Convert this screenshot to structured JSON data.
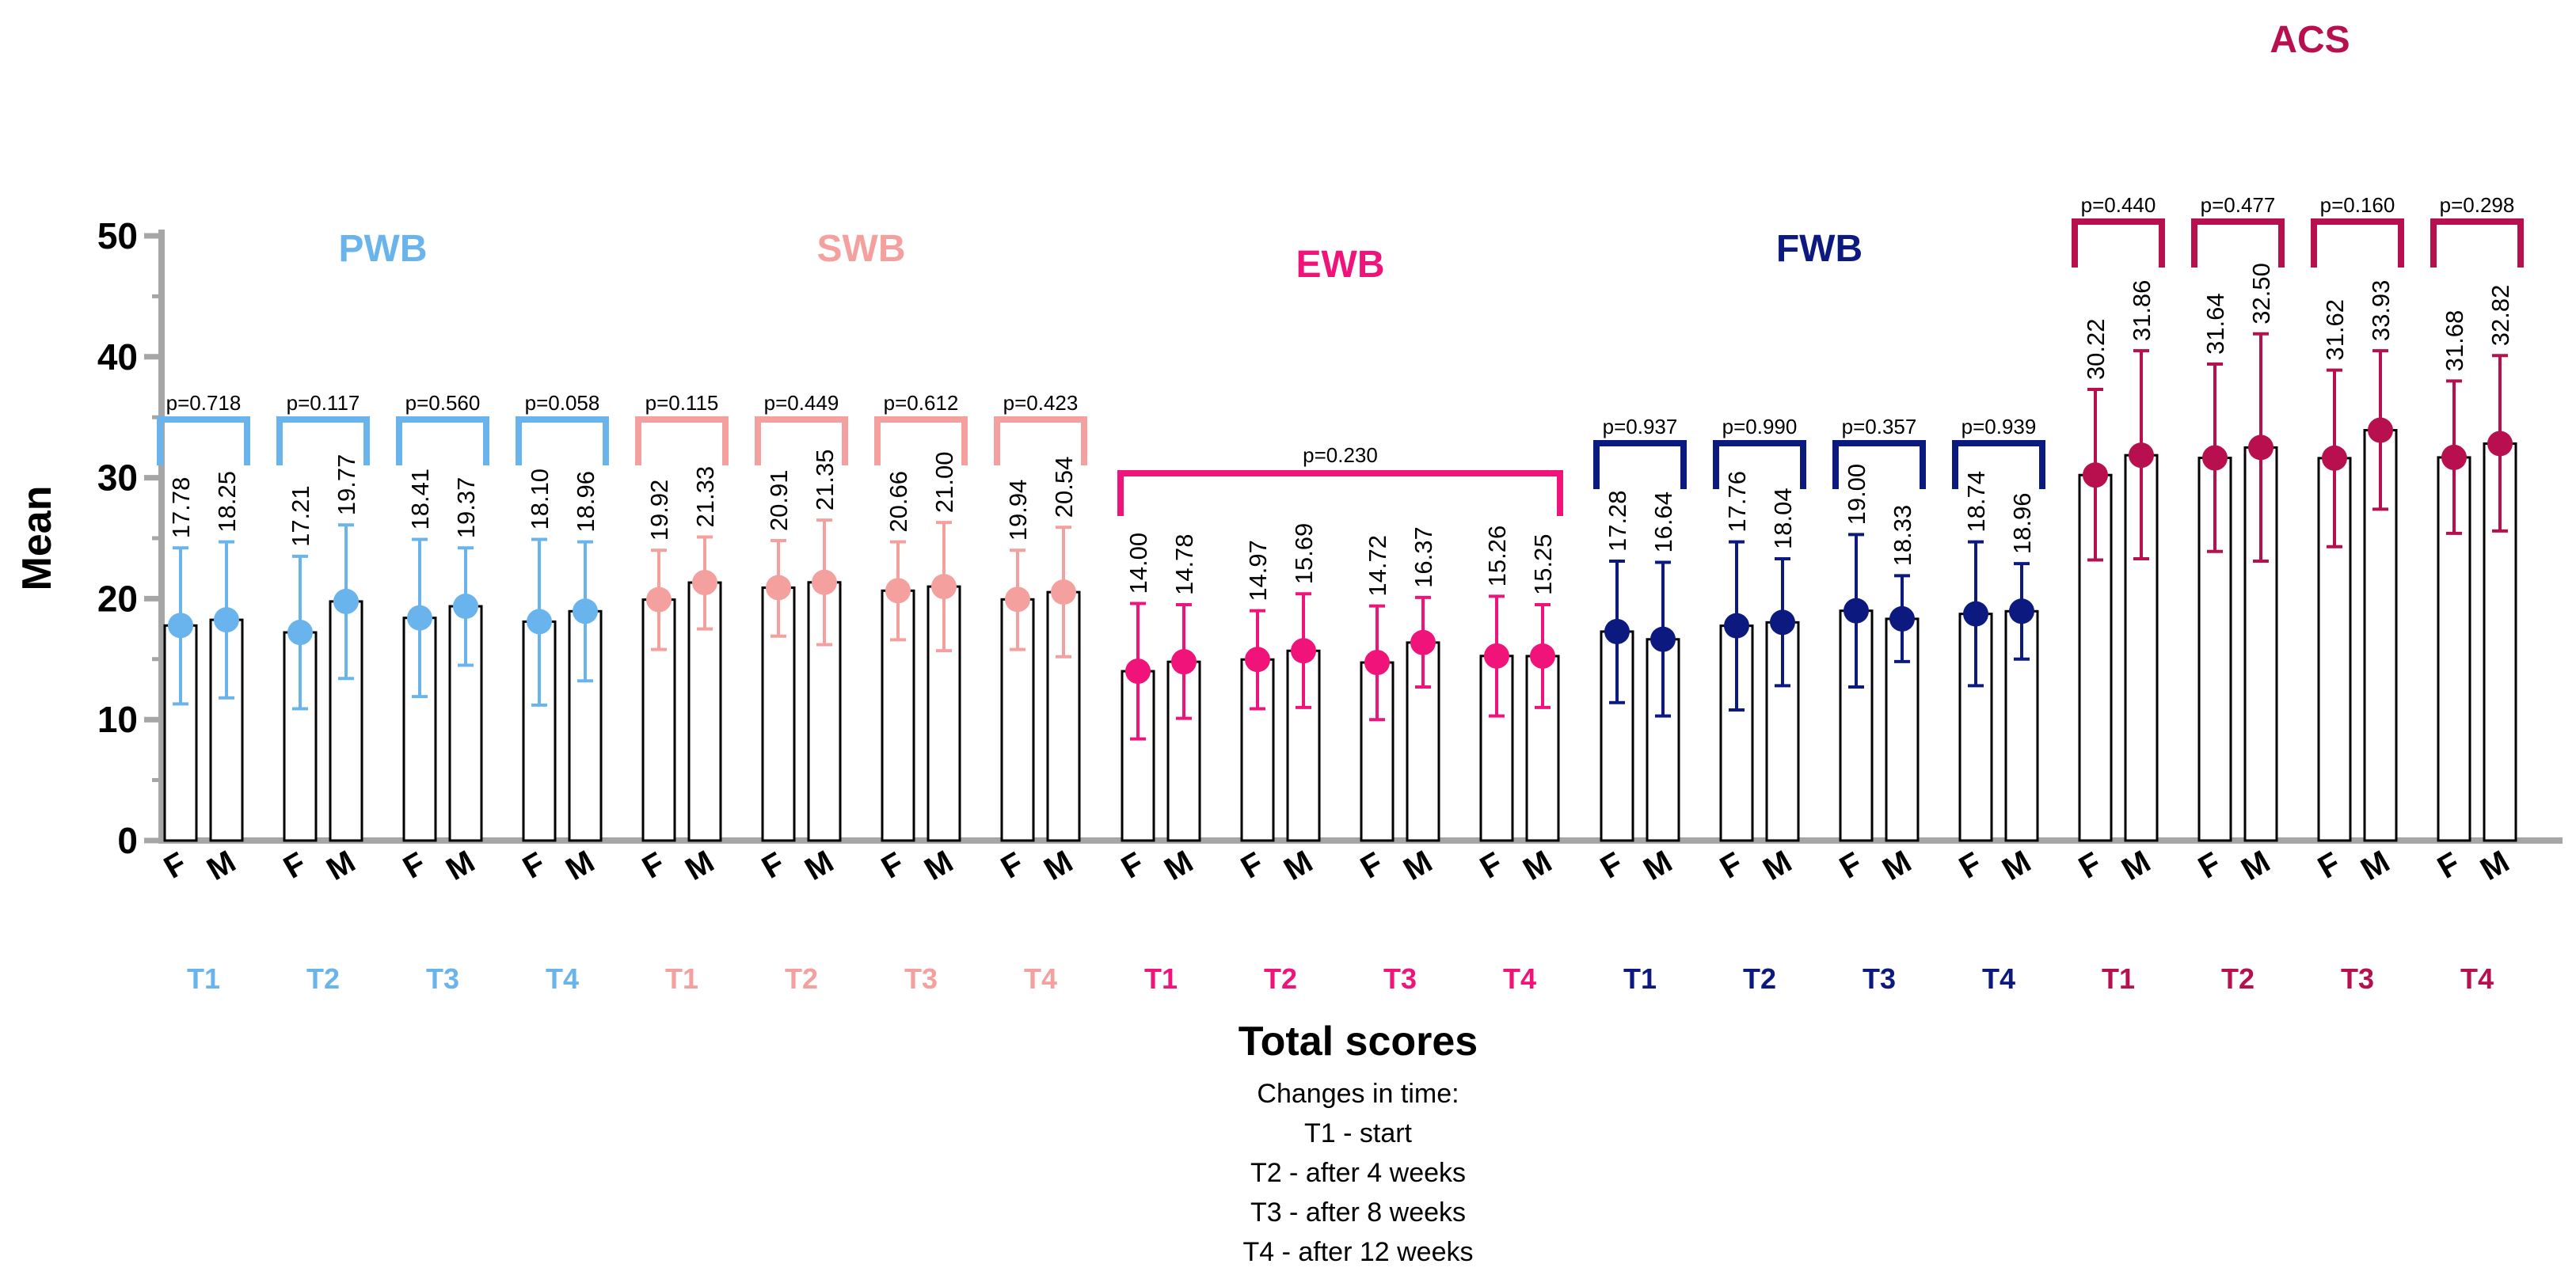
{
  "colors": {
    "PWB": "#6ab4ee",
    "SWB": "#f4a09e",
    "EWB": "#f0147a",
    "FWB": "#0c1a80",
    "ACS": "#b8104e",
    "axis": "#a6a6a6",
    "bar_outline": "#000000"
  },
  "chart_data": {
    "type": "bar",
    "ylabel": "Mean",
    "ylim": [
      0,
      50
    ],
    "yticks": [
      0,
      10,
      20,
      30,
      40,
      50
    ],
    "xtitle": "Total scores",
    "notes": [
      "Changes in time:",
      "T1 - start",
      "T2 - after 4 weeks",
      "T3 - after 8 weeks",
      "T4 - after 12 weeks"
    ],
    "error_bars": "mean ± SD (approx.)",
    "groups": [
      {
        "name": "PWB",
        "points": [
          {
            "time": "T1",
            "F": {
              "mean": 17.78,
              "lo": 11.3,
              "hi": 24.2,
              "label": "17.78"
            },
            "M": {
              "mean": 18.25,
              "lo": 11.8,
              "hi": 24.7,
              "label": "18.25"
            },
            "p": "p=0.718"
          },
          {
            "time": "T2",
            "F": {
              "mean": 17.21,
              "lo": 10.9,
              "hi": 23.5,
              "label": "17.21"
            },
            "M": {
              "mean": 19.77,
              "lo": 13.4,
              "hi": 26.1,
              "label": "19.77"
            },
            "p": "p=0.117"
          },
          {
            "time": "T3",
            "F": {
              "mean": 18.41,
              "lo": 11.9,
              "hi": 24.9,
              "label": "18.41"
            },
            "M": {
              "mean": 19.37,
              "lo": 14.5,
              "hi": 24.2,
              "label": "19.37"
            },
            "p": "p=0.560"
          },
          {
            "time": "T4",
            "F": {
              "mean": 18.1,
              "lo": 11.2,
              "hi": 24.9,
              "label": "18.10"
            },
            "M": {
              "mean": 18.96,
              "lo": 13.2,
              "hi": 24.7,
              "label": "18.96"
            },
            "p": "p=0.058"
          }
        ]
      },
      {
        "name": "SWB",
        "points": [
          {
            "time": "T1",
            "F": {
              "mean": 19.92,
              "lo": 15.8,
              "hi": 24.0,
              "label": "19.92"
            },
            "M": {
              "mean": 21.33,
              "lo": 17.5,
              "hi": 25.1,
              "label": "21.33"
            },
            "p": "p=0.115"
          },
          {
            "time": "T2",
            "F": {
              "mean": 20.91,
              "lo": 16.9,
              "hi": 24.8,
              "label": "20.91"
            },
            "M": {
              "mean": 21.35,
              "lo": 16.2,
              "hi": 26.5,
              "label": "21.35"
            },
            "p": "p=0.449"
          },
          {
            "time": "T3",
            "F": {
              "mean": 20.66,
              "lo": 16.6,
              "hi": 24.7,
              "label": "20.66"
            },
            "M": {
              "mean": 21.0,
              "lo": 15.7,
              "hi": 26.3,
              "label": "21.00"
            },
            "p": "p=0.612"
          },
          {
            "time": "T4",
            "F": {
              "mean": 19.94,
              "lo": 15.8,
              "hi": 24.0,
              "label": "19.94"
            },
            "M": {
              "mean": 20.54,
              "lo": 15.2,
              "hi": 25.9,
              "label": "20.54"
            },
            "p": "p=0.423"
          }
        ]
      },
      {
        "name": "EWB",
        "p": "p=0.230",
        "points": [
          {
            "time": "T1",
            "F": {
              "mean": 14.0,
              "lo": 8.4,
              "hi": 19.6,
              "label": "14.00"
            },
            "M": {
              "mean": 14.78,
              "lo": 10.1,
              "hi": 19.5,
              "label": "14.78"
            }
          },
          {
            "time": "T2",
            "F": {
              "mean": 14.97,
              "lo": 10.9,
              "hi": 19.0,
              "label": "14.97"
            },
            "M": {
              "mean": 15.69,
              "lo": 11.0,
              "hi": 20.4,
              "label": "15.69"
            }
          },
          {
            "time": "T3",
            "F": {
              "mean": 14.72,
              "lo": 10.0,
              "hi": 19.4,
              "label": "14.72"
            },
            "M": {
              "mean": 16.37,
              "lo": 12.7,
              "hi": 20.1,
              "label": "16.37"
            }
          },
          {
            "time": "T4",
            "F": {
              "mean": 15.26,
              "lo": 10.3,
              "hi": 20.2,
              "label": "15.26"
            },
            "M": {
              "mean": 15.25,
              "lo": 11.0,
              "hi": 19.5,
              "label": "15.25"
            }
          }
        ]
      },
      {
        "name": "FWB",
        "points": [
          {
            "time": "T1",
            "F": {
              "mean": 17.28,
              "lo": 11.4,
              "hi": 23.1,
              "label": "17.28"
            },
            "M": {
              "mean": 16.64,
              "lo": 10.3,
              "hi": 23.0,
              "label": "16.64"
            },
            "p": "p=0.937"
          },
          {
            "time": "T2",
            "F": {
              "mean": 17.76,
              "lo": 10.8,
              "hi": 24.7,
              "label": "17.76"
            },
            "M": {
              "mean": 18.04,
              "lo": 12.8,
              "hi": 23.3,
              "label": "18.04"
            },
            "p": "p=0.990"
          },
          {
            "time": "T3",
            "F": {
              "mean": 19.0,
              "lo": 12.7,
              "hi": 25.3,
              "label": "19.00"
            },
            "M": {
              "mean": 18.33,
              "lo": 14.8,
              "hi": 21.9,
              "label": "18.33"
            },
            "p": "p=0.357"
          },
          {
            "time": "T4",
            "F": {
              "mean": 18.74,
              "lo": 12.8,
              "hi": 24.7,
              "label": "18.74"
            },
            "M": {
              "mean": 18.96,
              "lo": 15.0,
              "hi": 22.9,
              "label": "18.96"
            },
            "p": "p=0.939"
          }
        ]
      },
      {
        "name": "ACS",
        "points": [
          {
            "time": "T1",
            "F": {
              "mean": 30.22,
              "lo": 23.2,
              "hi": 37.3,
              "label": "30.22"
            },
            "M": {
              "mean": 31.86,
              "lo": 23.3,
              "hi": 40.5,
              "label": "31.86"
            },
            "p": "p=0.440"
          },
          {
            "time": "T2",
            "F": {
              "mean": 31.64,
              "lo": 23.9,
              "hi": 39.4,
              "label": "31.64"
            },
            "M": {
              "mean": 32.5,
              "lo": 23.1,
              "hi": 41.9,
              "label": "32.50"
            },
            "p": "p=0.477"
          },
          {
            "time": "T3",
            "F": {
              "mean": 31.62,
              "lo": 24.3,
              "hi": 38.9,
              "label": "31.62"
            },
            "M": {
              "mean": 33.93,
              "lo": 27.4,
              "hi": 40.5,
              "label": "33.93"
            },
            "p": "p=0.160"
          },
          {
            "time": "T4",
            "F": {
              "mean": 31.68,
              "lo": 25.4,
              "hi": 38.0,
              "label": "31.68"
            },
            "M": {
              "mean": 32.82,
              "lo": 25.6,
              "hi": 40.1,
              "label": "32.82"
            },
            "p": "p=0.298"
          }
        ]
      }
    ]
  }
}
